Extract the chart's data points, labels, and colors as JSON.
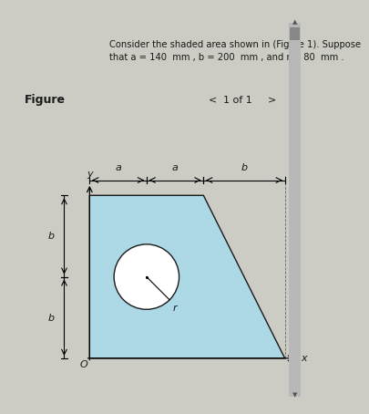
{
  "a": 140,
  "b": 200,
  "r": 80,
  "bg_color": "#ccccc4",
  "fig_bg_color": "#ccccc4",
  "shape_color": "#add8e6",
  "shape_edge_color": "#1a1a1a",
  "text_color": "#1a1a1a",
  "title_line1": "Consider the shaded area shown in (Figure 1). Suppose",
  "title_line2": "that a = 140  mm , b = 200  mm , and r = 80  mm .",
  "figure_label": "Figure",
  "page_label": "1 of 1",
  "scrollbar_bg": "#b8b8b8",
  "scrollbar_thumb": "#888888"
}
